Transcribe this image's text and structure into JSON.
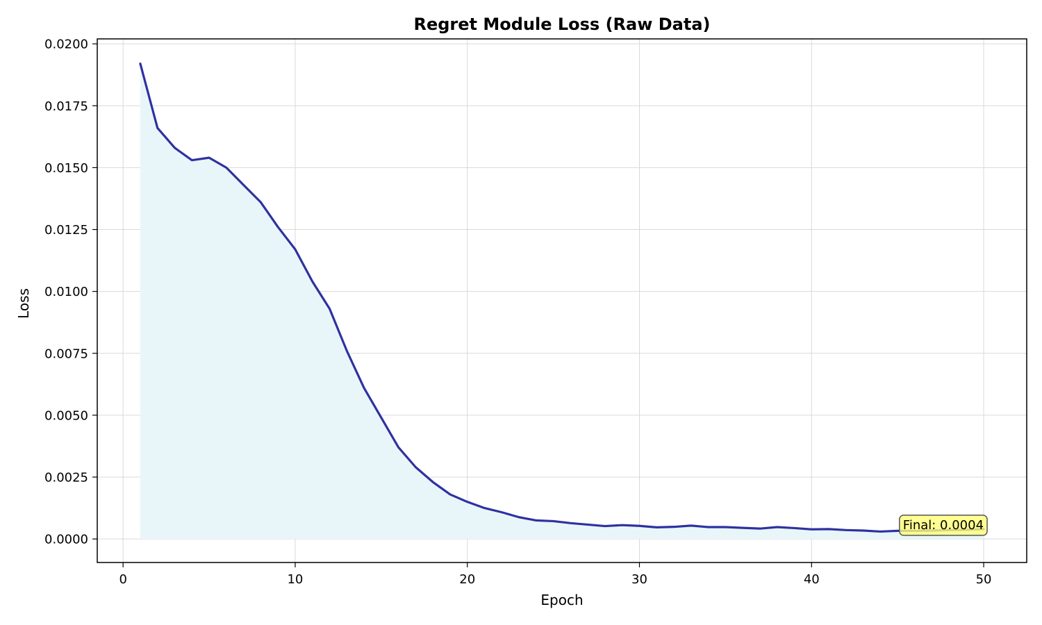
{
  "chart_data": {
    "type": "line",
    "title": "Regret Module Loss (Raw Data)",
    "xlabel": "Epoch",
    "ylabel": "Loss",
    "xlim": [
      -1.5,
      52.5
    ],
    "ylim": [
      -0.00095,
      0.0202
    ],
    "xticks": [
      0,
      10,
      20,
      30,
      40,
      50
    ],
    "xtick_labels": [
      "0",
      "10",
      "20",
      "30",
      "40",
      "50"
    ],
    "yticks": [
      0.0,
      0.0025,
      0.005,
      0.0075,
      0.01,
      0.0125,
      0.015,
      0.0175,
      0.02
    ],
    "ytick_labels": [
      "0.0000",
      "0.0025",
      "0.0050",
      "0.0075",
      "0.0100",
      "0.0125",
      "0.0150",
      "0.0175",
      "0.0200"
    ],
    "grid": true,
    "fill_under": true,
    "series": [
      {
        "x": [
          1,
          2,
          3,
          4,
          5,
          6,
          7,
          8,
          9,
          10,
          11,
          12,
          13,
          14,
          15,
          16,
          17,
          18,
          19,
          20,
          21,
          22,
          23,
          24,
          25,
          26,
          27,
          28,
          29,
          30,
          31,
          32,
          33,
          34,
          35,
          36,
          37,
          38,
          39,
          40,
          41,
          42,
          43,
          44,
          45,
          46,
          47,
          48,
          49,
          50
        ],
        "values": [
          0.0192,
          0.0166,
          0.0158,
          0.0153,
          0.0154,
          0.015,
          0.0143,
          0.0136,
          0.0126,
          0.0117,
          0.0104,
          0.0093,
          0.0076,
          0.0061,
          0.0049,
          0.0037,
          0.0029,
          0.0023,
          0.0018,
          0.0015,
          0.00125,
          0.00108,
          0.00088,
          0.00075,
          0.00072,
          0.00064,
          0.00058,
          0.00052,
          0.00056,
          0.00053,
          0.00047,
          0.00049,
          0.00054,
          0.00048,
          0.00048,
          0.00045,
          0.00042,
          0.00048,
          0.00044,
          0.00039,
          0.0004,
          0.00036,
          0.00034,
          0.0003,
          0.00033,
          0.00033,
          0.00034,
          0.00036,
          0.00037,
          0.0004
        ],
        "color": "#2e31a0",
        "fill_color": "#e9f6f9"
      }
    ],
    "annotation": {
      "text": "Final: 0.0004",
      "x": 50,
      "y": 0.0004,
      "box_color": "#ffff77"
    }
  }
}
